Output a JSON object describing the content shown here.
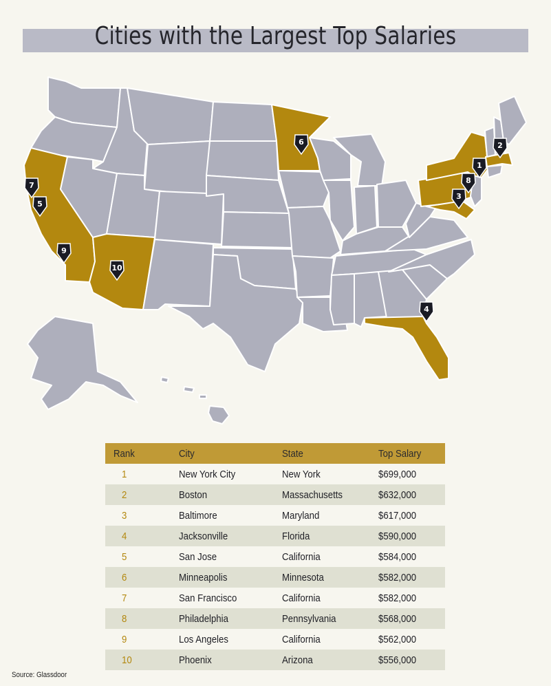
{
  "title": "Cities with the Largest Top Salaries",
  "colors": {
    "highlight": "#b3880f",
    "state_fill": "#aeafbc",
    "header_bg": "#c09a36",
    "stripe": "#dfe0d2",
    "pin": "#1a1b24"
  },
  "highlighted_states": [
    "California",
    "Arizona",
    "Minnesota",
    "New York",
    "Massachusetts",
    "Pennsylvania",
    "Maryland",
    "Florida"
  ],
  "map_pins": [
    {
      "label": "1",
      "city": "New York City"
    },
    {
      "label": "2",
      "city": "Boston"
    },
    {
      "label": "3",
      "city": "Baltimore"
    },
    {
      "label": "4",
      "city": "Jacksonville"
    },
    {
      "label": "5",
      "city": "San Jose"
    },
    {
      "label": "6",
      "city": "Minneapolis"
    },
    {
      "label": "7",
      "city": "San Francisco"
    },
    {
      "label": "8",
      "city": "Philadelphia"
    },
    {
      "label": "9",
      "city": "Los Angeles"
    },
    {
      "label": "10",
      "city": "Phoenix"
    }
  ],
  "table": {
    "headers": {
      "rank": "Rank",
      "city": "City",
      "state": "State",
      "salary": "Top Salary"
    },
    "rows": [
      {
        "rank": "1",
        "city": "New York City",
        "state": "New York",
        "salary": "$699,000"
      },
      {
        "rank": "2",
        "city": "Boston",
        "state": "Massachusetts",
        "salary": "$632,000"
      },
      {
        "rank": "3",
        "city": "Baltimore",
        "state": "Maryland",
        "salary": "$617,000"
      },
      {
        "rank": "4",
        "city": "Jacksonville",
        "state": "Florida",
        "salary": "$590,000"
      },
      {
        "rank": "5",
        "city": "San Jose",
        "state": "California",
        "salary": "$584,000"
      },
      {
        "rank": "6",
        "city": "Minneapolis",
        "state": "Minnesota",
        "salary": "$582,000"
      },
      {
        "rank": "7",
        "city": "San Francisco",
        "state": "California",
        "salary": "$582,000"
      },
      {
        "rank": "8",
        "city": "Philadelphia",
        "state": "Pennsylvania",
        "salary": "$568,000"
      },
      {
        "rank": "9",
        "city": "Los Angeles",
        "state": "California",
        "salary": "$562,000"
      },
      {
        "rank": "10",
        "city": "Phoenix",
        "state": "Arizona",
        "salary": "$556,000"
      }
    ]
  },
  "source": "Source: Glassdoor"
}
